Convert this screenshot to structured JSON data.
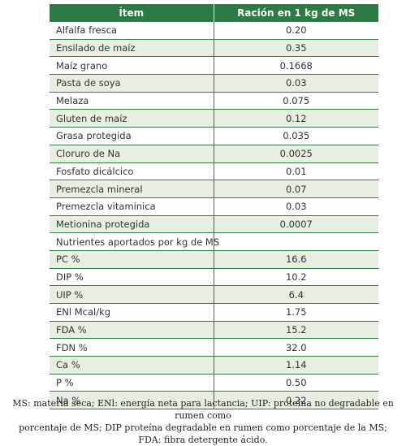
{
  "table": {
    "headers": [
      "Ítem",
      "Ración en 1 kg de MS"
    ],
    "rows": [
      {
        "item": "Alfalfa fresca",
        "value": "0.20"
      },
      {
        "item": "Ensilado de maíz",
        "value": "0.35"
      },
      {
        "item": "Maíz grano",
        "value": "0.1668"
      },
      {
        "item": "Pasta de soya",
        "value": "0.03"
      },
      {
        "item": "Melaza",
        "value": "0.075"
      },
      {
        "item": "Gluten de maíz",
        "value": "0.12"
      },
      {
        "item": "Grasa protegida",
        "value": "0.035"
      },
      {
        "item": "Cloruro de Na",
        "value": "0.0025"
      },
      {
        "item": "Fosfato dicálcico",
        "value": "0.01"
      },
      {
        "item": "Premezcla mineral",
        "value": "0.07"
      },
      {
        "item": "Premezcla vitamínica",
        "value": "0.03"
      },
      {
        "item": "Metionina protegida",
        "value": "0.0007"
      }
    ],
    "section_title": "Nutrientes aportados por kg de MS",
    "nutrients": [
      {
        "item": "PC %",
        "value": "16.6"
      },
      {
        "item": "DIP %",
        "value": "10.2"
      },
      {
        "item": "UIP %",
        "value": "6.4"
      },
      {
        "item": "ENl Mcal/kg",
        "value": "1.75"
      },
      {
        "item": "FDA %",
        "value": "15.2"
      },
      {
        "item": "FDN %",
        "value": "32.0"
      },
      {
        "item": "Ca %",
        "value": "1.14"
      },
      {
        "item": "P %",
        "value": "0.50"
      },
      {
        "item": "Na %",
        "value": "0.22"
      }
    ]
  },
  "footnote": {
    "line1": "MS: materia seca; ENl: energía neta para lactancia; UIP: proteína no degradable en rumen como",
    "line2": "porcentaje de MS; DIP proteína degradable en rumen como porcentaje de la MS;",
    "line3": "FDA: fibra detergente ácido."
  },
  "colors": {
    "header_green": "#2e7a45",
    "alt_row": "#e6efe1"
  }
}
